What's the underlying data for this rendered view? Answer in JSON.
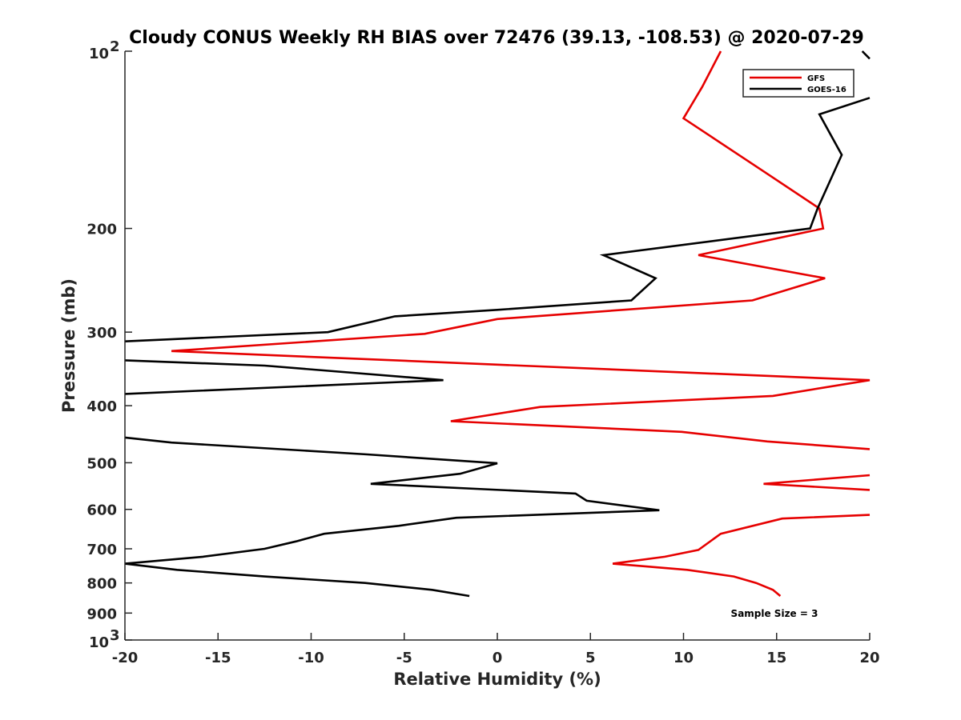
{
  "chart_data": {
    "type": "line",
    "title": "Cloudy CONUS Weekly RH BIAS over 72476 (39.13, -108.53) @ 2020-07-29",
    "xlabel": "Relative Humidity (%)",
    "ylabel": "Pressure (mb)",
    "xlim": [
      -20,
      20
    ],
    "ylim": [
      100,
      1000
    ],
    "y_scale": "log",
    "y_reversed": true,
    "grid": false,
    "legend_position": "top-right",
    "x_ticks": [
      "-20",
      "-15",
      "-10",
      "-5",
      "0",
      "5",
      "10",
      "15",
      "20"
    ],
    "y_ticks": [
      {
        "value": 100,
        "base": "10",
        "exp": "2"
      },
      {
        "value": 200,
        "label": "200"
      },
      {
        "value": 300,
        "label": "300"
      },
      {
        "value": 400,
        "label": "400"
      },
      {
        "value": 500,
        "label": "500"
      },
      {
        "value": 600,
        "label": "600"
      },
      {
        "value": 700,
        "label": "700"
      },
      {
        "value": 800,
        "label": "800"
      },
      {
        "value": 900,
        "label": "900"
      },
      {
        "value": 1000,
        "base": "10",
        "exp": "3"
      }
    ],
    "annotation": "Sample Size = 3",
    "series": [
      {
        "name": "GFS",
        "color": "#e60000",
        "segments": [
          [
            [
              12.0,
              100
            ],
            [
              11.0,
              115
            ],
            [
              10.0,
              130
            ],
            [
              14.3,
              160
            ],
            [
              17.3,
              185
            ],
            [
              17.5,
              200
            ],
            [
              10.8,
              222
            ],
            [
              17.6,
              243
            ],
            [
              13.7,
              265
            ],
            [
              0.0,
              285
            ],
            [
              -3.9,
              302
            ],
            [
              -17.5,
              323
            ],
            [
              20.0,
              362
            ],
            [
              14.8,
              385
            ],
            [
              2.3,
              402
            ],
            [
              -2.5,
              425
            ],
            [
              9.9,
              443
            ],
            [
              14.5,
              460
            ],
            [
              20.0,
              474
            ]
          ],
          [
            [
              20.0,
              525
            ],
            [
              14.3,
              543
            ],
            [
              20.0,
              556
            ]
          ],
          [
            [
              20.0,
              613
            ],
            [
              15.3,
              622
            ],
            [
              12.0,
              660
            ],
            [
              10.8,
              703
            ],
            [
              9.0,
              722
            ],
            [
              6.2,
              742
            ],
            [
              10.2,
              760
            ],
            [
              12.7,
              780
            ],
            [
              13.9,
              800
            ],
            [
              14.8,
              822
            ],
            [
              15.2,
              842
            ]
          ]
        ]
      },
      {
        "name": "GOES-16",
        "color": "#000000",
        "segments": [
          [
            [
              19.6,
              100
            ],
            [
              20.0,
              103
            ]
          ],
          [
            [
              20.0,
              120
            ],
            [
              17.3,
              128
            ],
            [
              18.5,
              150
            ],
            [
              17.2,
              185
            ],
            [
              16.8,
              200
            ],
            [
              5.7,
              222
            ],
            [
              8.5,
              243
            ],
            [
              7.2,
              265
            ],
            [
              0.0,
              275
            ],
            [
              -5.5,
              282
            ],
            [
              -9.1,
              300
            ],
            [
              -20.0,
              311
            ]
          ],
          [
            [
              -20.0,
              335
            ],
            [
              -12.5,
              342
            ],
            [
              -2.9,
              362
            ],
            [
              -20.0,
              382
            ]
          ],
          [
            [
              -20.0,
              453
            ],
            [
              -17.5,
              462
            ],
            [
              -7.0,
              484
            ],
            [
              0.0,
              501
            ],
            [
              -2.0,
              522
            ],
            [
              -6.8,
              543
            ],
            [
              4.2,
              564
            ],
            [
              4.8,
              580
            ],
            [
              8.7,
              602
            ],
            [
              -2.2,
              620
            ],
            [
              -5.3,
              640
            ],
            [
              -9.3,
              660
            ],
            [
              -10.8,
              680
            ],
            [
              -12.5,
              700
            ],
            [
              -15.8,
              722
            ],
            [
              -20.0,
              742
            ]
          ],
          [
            [
              -20.0,
              742
            ],
            [
              -17.2,
              760
            ],
            [
              -12.5,
              780
            ],
            [
              -7.1,
              800
            ],
            [
              -3.5,
              822
            ],
            [
              -1.5,
              842
            ]
          ]
        ]
      }
    ]
  }
}
